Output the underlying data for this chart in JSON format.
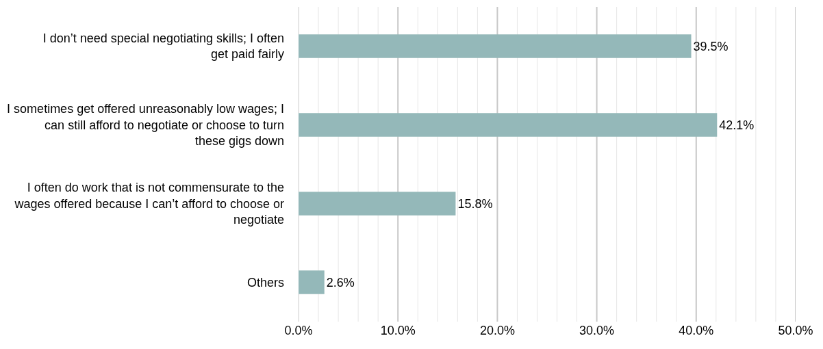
{
  "chart_data": {
    "type": "bar",
    "orientation": "horizontal",
    "categories": [
      "I don’t need special negotiating skills; I often get paid fairly",
      "I sometimes get offered unreasonably low wages; I can still afford to negotiate or choose to turn these gigs down",
      "I often do work that is not commensurate to the wages offered because I can’t afford to choose or negotiate",
      "Others"
    ],
    "values": [
      39.5,
      42.1,
      15.8,
      2.6
    ],
    "value_labels": [
      "39.5%",
      "42.1%",
      "15.8%",
      "2.6%"
    ],
    "color": "#94b8b9",
    "xlim": [
      0,
      50
    ],
    "xticks": [
      {
        "value": 0,
        "label": "0.0%"
      },
      {
        "value": 2,
        "label": null
      },
      {
        "value": 4,
        "label": null
      },
      {
        "value": 6,
        "label": null
      },
      {
        "value": 8,
        "label": null
      },
      {
        "value": 10,
        "label": "10.0%"
      },
      {
        "value": 12,
        "label": null
      },
      {
        "value": 14,
        "label": null
      },
      {
        "value": 16,
        "label": null
      },
      {
        "value": 18,
        "label": null
      },
      {
        "value": 20,
        "label": "20.0%"
      },
      {
        "value": 22,
        "label": null
      },
      {
        "value": 24,
        "label": null
      },
      {
        "value": 26,
        "label": null
      },
      {
        "value": 28,
        "label": null
      },
      {
        "value": 30,
        "label": "30.0%"
      },
      {
        "value": 32,
        "label": null
      },
      {
        "value": 34,
        "label": null
      },
      {
        "value": 36,
        "label": null
      },
      {
        "value": 38,
        "label": null
      },
      {
        "value": 40,
        "label": "40.0%"
      },
      {
        "value": 42,
        "label": null
      },
      {
        "value": 44,
        "label": null
      },
      {
        "value": 46,
        "label": null
      },
      {
        "value": 48,
        "label": null
      },
      {
        "value": 50,
        "label": "50.0%"
      }
    ],
    "grid": "x",
    "legend": false
  }
}
